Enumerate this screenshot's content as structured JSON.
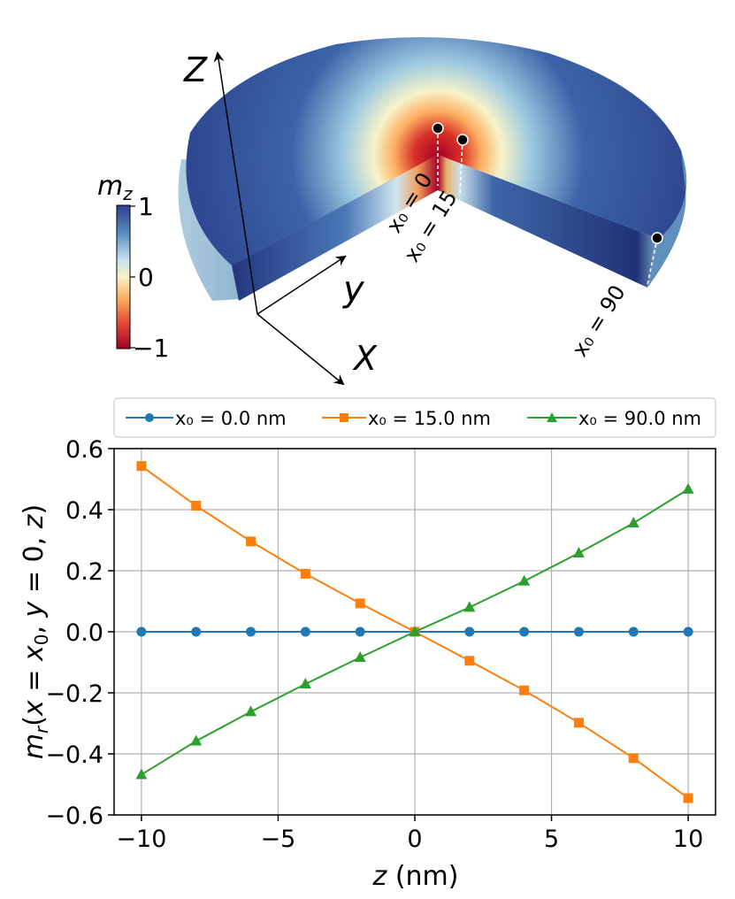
{
  "illustration": {
    "axis_labels": {
      "z": "Z",
      "y": "y",
      "x": "X"
    },
    "colorbar": {
      "label": "m_z",
      "ticks": [
        "1",
        "0",
        "−1"
      ]
    },
    "positions": [
      "x₀ = 0",
      "x₀ = 15",
      "x₀ = 90"
    ],
    "colors": {
      "positive": "#1f3a8a",
      "zero": "#f7f3c9",
      "negative": "#a50026"
    }
  },
  "chart_data": {
    "type": "line",
    "x": [
      -10,
      -8,
      -6,
      -4,
      -2,
      0,
      2,
      4,
      6,
      8,
      10
    ],
    "series": [
      {
        "name": "x₀ = 0.0 nm",
        "color": "#1f77b4",
        "marker": "circle",
        "values": [
          0,
          0,
          0,
          0,
          0,
          0,
          0,
          0,
          0,
          0,
          0
        ]
      },
      {
        "name": "x₀ = 15.0 nm",
        "color": "#ff7f0e",
        "marker": "square",
        "values": [
          0.543,
          0.413,
          0.296,
          0.19,
          0.093,
          0.0,
          -0.095,
          -0.192,
          -0.298,
          -0.414,
          -0.545
        ]
      },
      {
        "name": "x₀ = 90.0 nm",
        "color": "#2ca02c",
        "marker": "triangle",
        "values": [
          -0.468,
          -0.358,
          -0.262,
          -0.171,
          -0.084,
          0.0,
          0.08,
          0.166,
          0.258,
          0.356,
          0.467
        ]
      }
    ],
    "xlabel": "z (nm)",
    "ylabel": "m_r(x = x₀, y = 0, z)",
    "xlim": [
      -11,
      11
    ],
    "ylim": [
      -0.6,
      0.6
    ],
    "xticks": [
      -10,
      -5,
      0,
      5,
      10
    ],
    "xtick_labels": [
      "−10",
      "−5",
      "0",
      "5",
      "10"
    ],
    "yticks": [
      -0.6,
      -0.4,
      -0.2,
      0.0,
      0.2,
      0.4,
      0.6
    ],
    "ytick_labels": [
      "−0.6",
      "−0.4",
      "−0.2",
      "0.0",
      "0.2",
      "0.4",
      "0.6"
    ],
    "grid": true,
    "legend_position": "top, above plot"
  }
}
